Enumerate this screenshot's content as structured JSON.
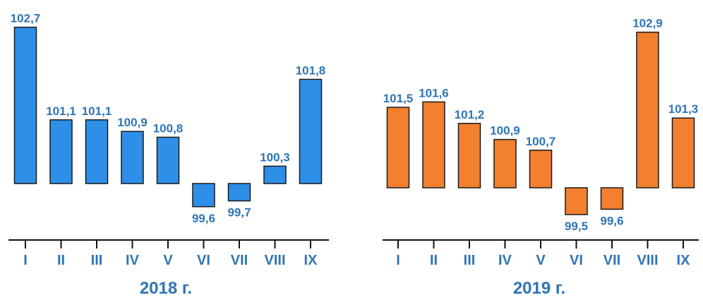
{
  "colors": {
    "text": "#2e75b6",
    "series_2018": "#2e8fe8",
    "series_2019": "#f2802e",
    "outline": "#1a1a1a",
    "axis": "#111111"
  },
  "chart_data": [
    {
      "type": "bar",
      "title": "2018 г.",
      "baseline": 100,
      "categories": [
        "I",
        "II",
        "III",
        "IV",
        "V",
        "VI",
        "VII",
        "VIII",
        "IX"
      ],
      "values": [
        102.7,
        101.1,
        101.1,
        100.9,
        100.8,
        99.6,
        99.7,
        100.3,
        101.8
      ],
      "value_labels": [
        "102,7",
        "101,1",
        "101,1",
        "100,9",
        "100,8",
        "99,6",
        "99,7",
        "100,3",
        "101,8"
      ],
      "grid": false,
      "legend": "none"
    },
    {
      "type": "bar",
      "title": "2019 г.",
      "baseline": 100,
      "categories": [
        "I",
        "II",
        "III",
        "IV",
        "V",
        "VI",
        "VII",
        "VIII",
        "IX"
      ],
      "values": [
        101.5,
        101.6,
        101.2,
        100.9,
        100.7,
        99.5,
        99.6,
        102.9,
        101.3
      ],
      "value_labels": [
        "101,5",
        "101,6",
        "101,2",
        "100,9",
        "100,7",
        "99,5",
        "99,6",
        "102,9",
        "101,3"
      ],
      "grid": false,
      "legend": "none"
    }
  ]
}
